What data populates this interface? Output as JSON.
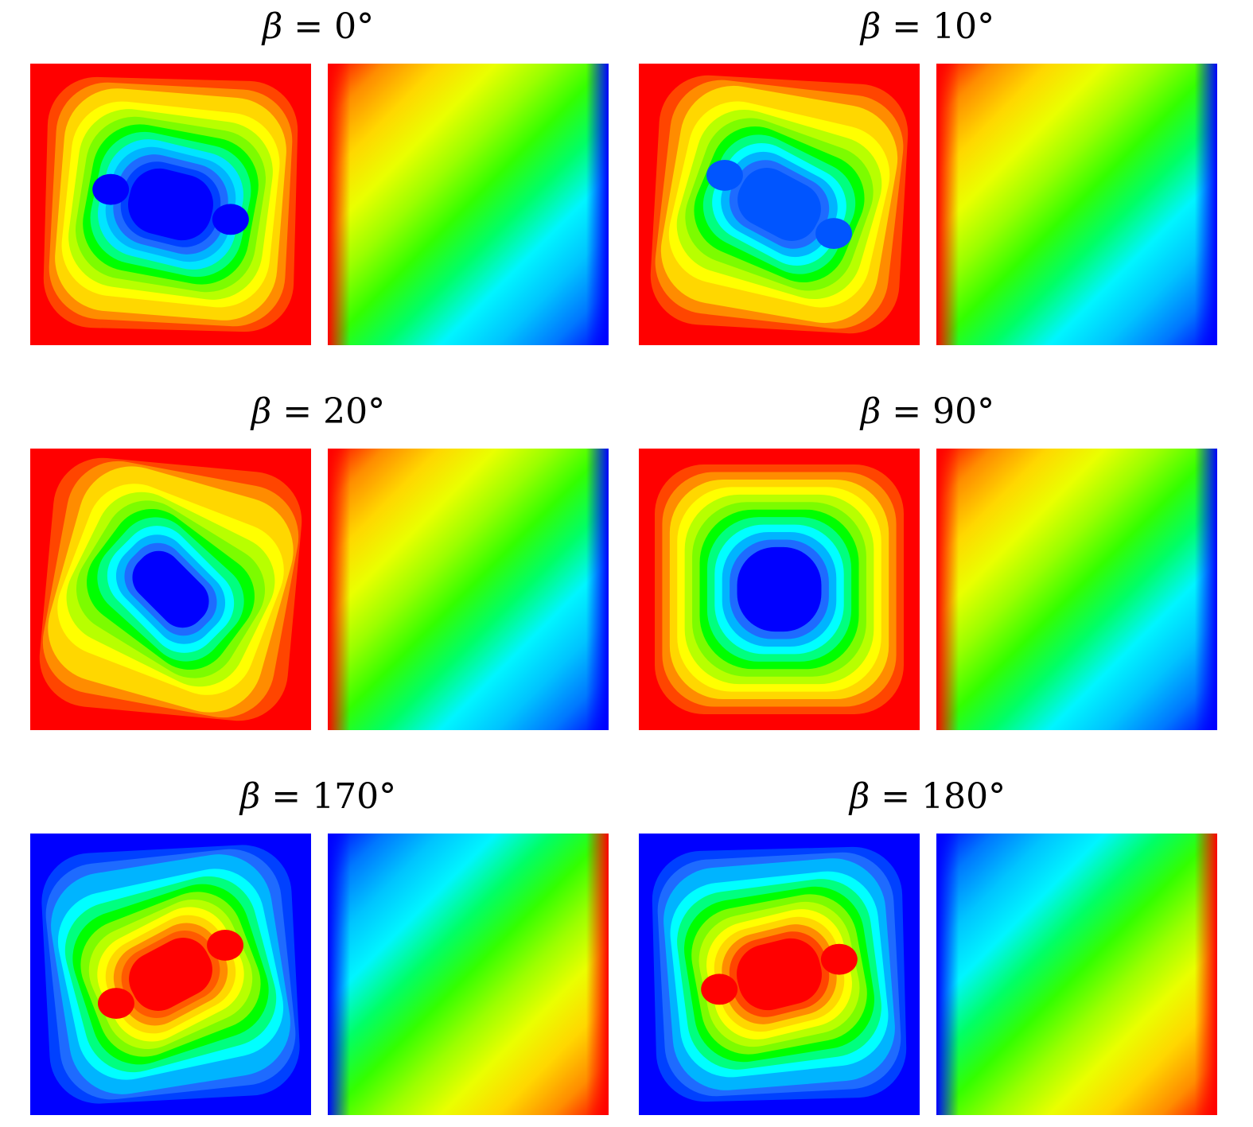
{
  "panels": [
    {
      "title": {
        "symbol": "β",
        "equals": "=",
        "value": "0°"
      },
      "left": {
        "outer_color": "#ff0000",
        "layers": [
          "#ff0000",
          "#ff4500",
          "#ff8c00",
          "#ffd700",
          "#ffff00",
          "#b8ff00",
          "#7cfc00",
          "#00ff00",
          "#00ff7f",
          "#00e5ff",
          "#00b4ff",
          "#1e6bff",
          "#0041ff",
          "#0000ff"
        ]
      },
      "right": {
        "colors": [
          "#ff0000",
          "#ff8c00",
          "#ffd700",
          "#eaff00",
          "#9aff00",
          "#33ff00",
          "#00ff66",
          "#00f5ff",
          "#00c4ff",
          "#0077ff",
          "#0000ff"
        ]
      }
    },
    {
      "title": {
        "symbol": "β",
        "equals": "=",
        "value": "10°"
      },
      "left": {
        "outer_color": "#ff0000",
        "layers": [
          "#ff0000",
          "#ff4500",
          "#ff8c00",
          "#ffd700",
          "#ffff00",
          "#b8ff00",
          "#7cfc00",
          "#00ff00",
          "#00ff7f",
          "#00ffff",
          "#00b4ff",
          "#1e6bff",
          "#0055ff"
        ]
      },
      "right": {
        "colors": [
          "#ff0000",
          "#ff8c00",
          "#ffd700",
          "#eaff00",
          "#9aff00",
          "#33ff00",
          "#00ff66",
          "#00f5ff",
          "#00c4ff",
          "#0077ff",
          "#0000ff"
        ]
      }
    },
    {
      "title": {
        "symbol": "β",
        "equals": "=",
        "value": "20°"
      },
      "left": {
        "outer_color": "#ff0000",
        "layers": [
          "#ff0000",
          "#ff4500",
          "#ff8c00",
          "#ffd700",
          "#ffff00",
          "#b8ff00",
          "#7cfc00",
          "#00ff00",
          "#00ff7f",
          "#00ffff",
          "#00b4ff",
          "#1e6bff",
          "#0000ff"
        ]
      },
      "right": {
        "colors": [
          "#ff0000",
          "#ff8c00",
          "#ffd700",
          "#eaff00",
          "#9aff00",
          "#33ff00",
          "#00ff66",
          "#00f5ff",
          "#00c4ff",
          "#0077ff",
          "#0000ff"
        ]
      }
    },
    {
      "title": {
        "symbol": "β",
        "equals": "=",
        "value": "90°"
      },
      "left": {
        "outer_color": "#ff0000",
        "layers": [
          "#ff0000",
          "#ff4500",
          "#ff8c00",
          "#ffd700",
          "#ffff00",
          "#b8ff00",
          "#7cfc00",
          "#00ff00",
          "#00ff7f",
          "#00ffff",
          "#00b4ff",
          "#1e6bff",
          "#0000ff"
        ]
      },
      "right": {
        "colors": [
          "#ff0000",
          "#ff8c00",
          "#ffd700",
          "#eaff00",
          "#9aff00",
          "#33ff00",
          "#00ff66",
          "#00f5ff",
          "#00c4ff",
          "#0077ff",
          "#0000ff"
        ]
      }
    },
    {
      "title": {
        "symbol": "β",
        "equals": "=",
        "value": "170°"
      },
      "left": {
        "outer_color": "#0000ff",
        "layers": [
          "#0000ff",
          "#0041ff",
          "#1e6bff",
          "#00b4ff",
          "#00ffff",
          "#00ff7f",
          "#00ff00",
          "#7cfc00",
          "#b8ff00",
          "#ffff00",
          "#ffd700",
          "#ff8c00",
          "#ff5a00",
          "#ff0000"
        ]
      },
      "right": {
        "colors": [
          "#0000ff",
          "#0077ff",
          "#00c4ff",
          "#00f5ff",
          "#00ff66",
          "#33ff00",
          "#9aff00",
          "#eaff00",
          "#ffd700",
          "#ff8c00",
          "#ff0000"
        ]
      }
    },
    {
      "title": {
        "symbol": "β",
        "equals": "=",
        "value": "180°"
      },
      "left": {
        "outer_color": "#0000ff",
        "layers": [
          "#0000ff",
          "#0041ff",
          "#1e6bff",
          "#00b4ff",
          "#00ffff",
          "#00ff7f",
          "#00ff00",
          "#7cfc00",
          "#b8ff00",
          "#ffff00",
          "#ffd700",
          "#ff8c00",
          "#ff4500",
          "#ff0000"
        ]
      },
      "right": {
        "colors": [
          "#0000ff",
          "#0077ff",
          "#00c4ff",
          "#00f5ff",
          "#00ff66",
          "#33ff00",
          "#9aff00",
          "#eaff00",
          "#ffd700",
          "#ff8c00",
          "#ff0000"
        ]
      }
    }
  ]
}
